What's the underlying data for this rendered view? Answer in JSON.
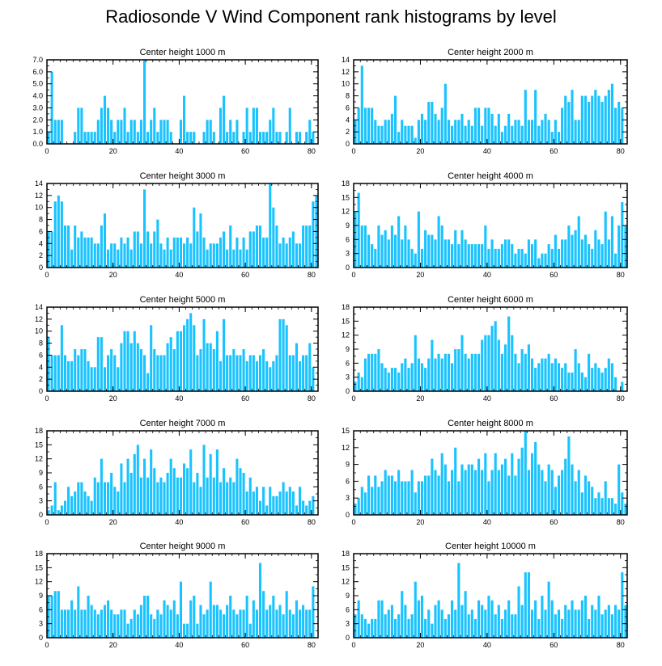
{
  "title": "Radiosonde V Wind Component rank histograms by level",
  "colors": {
    "bar": "#19c3ff",
    "frame": "#000000"
  },
  "chart_data": [
    {
      "type": "bar",
      "title": "Center height 1000 m",
      "xlim": [
        0,
        82
      ],
      "ylim": [
        0,
        7
      ],
      "xticks": [
        0,
        20,
        40,
        60,
        80
      ],
      "yticks": [
        "0.0",
        "1.0",
        "2.0",
        "3.0",
        "4.0",
        "5.0",
        "6.0",
        "7.0"
      ],
      "ytick_values": [
        0,
        1,
        2,
        3,
        4,
        5,
        6,
        7
      ],
      "values": [
        1,
        6,
        2,
        2,
        2,
        0,
        0,
        0,
        1,
        3,
        3,
        1,
        1,
        1,
        1,
        2,
        3,
        4,
        3,
        2,
        1,
        2,
        2,
        3,
        1,
        2,
        2,
        1,
        2,
        7,
        1,
        2,
        3,
        1,
        2,
        2,
        2,
        1,
        0,
        0,
        2,
        4,
        1,
        1,
        1,
        0,
        0,
        1,
        2,
        2,
        1,
        0,
        3,
        4,
        1,
        2,
        1,
        2,
        0,
        1,
        3,
        1,
        3,
        3,
        1,
        1,
        1,
        2,
        3,
        1,
        1,
        0,
        1,
        3,
        0,
        1,
        1,
        0,
        1,
        2,
        1
      ]
    },
    {
      "type": "bar",
      "title": "Center height 2000 m",
      "xlim": [
        0,
        82
      ],
      "ylim": [
        0,
        14
      ],
      "xticks": [
        0,
        20,
        40,
        60,
        80
      ],
      "yticks": [
        "0",
        "2",
        "4",
        "6",
        "8",
        "10",
        "12",
        "14"
      ],
      "ytick_values": [
        0,
        2,
        4,
        6,
        8,
        10,
        12,
        14
      ],
      "values": [
        4,
        6,
        13,
        6,
        6,
        6,
        4,
        3,
        3,
        4,
        4,
        5,
        8,
        2,
        4,
        3,
        3,
        3,
        1,
        4,
        5,
        4,
        7,
        7,
        5,
        4,
        6,
        10,
        4,
        3,
        4,
        4,
        5,
        3,
        4,
        3,
        6,
        6,
        3,
        6,
        6,
        5,
        3,
        5,
        2,
        3,
        5,
        3,
        4,
        4,
        3,
        9,
        4,
        4,
        9,
        3,
        4,
        5,
        4,
        2,
        4,
        2,
        6,
        8,
        7,
        9,
        4,
        4,
        8,
        8,
        7,
        8,
        9,
        8,
        7,
        8,
        9,
        10,
        6,
        7,
        6
      ]
    },
    {
      "type": "bar",
      "title": "Center height 3000 m",
      "xlim": [
        0,
        82
      ],
      "ylim": [
        0,
        14
      ],
      "xticks": [
        0,
        20,
        40,
        60,
        80
      ],
      "yticks": [
        "0",
        "2",
        "4",
        "6",
        "8",
        "10",
        "12",
        "14"
      ],
      "ytick_values": [
        0,
        2,
        4,
        6,
        8,
        10,
        12,
        14
      ],
      "values": [
        6,
        6,
        11,
        12,
        11,
        7,
        7,
        3,
        7,
        5,
        6,
        5,
        5,
        5,
        4,
        4,
        7,
        9,
        3,
        4,
        4,
        3,
        5,
        4,
        5,
        3,
        6,
        6,
        4,
        13,
        6,
        4,
        6,
        8,
        4,
        3,
        5,
        3,
        5,
        5,
        5,
        4,
        5,
        4,
        10,
        6,
        9,
        5,
        3,
        4,
        4,
        4,
        5,
        6,
        3,
        7,
        3,
        5,
        3,
        5,
        3,
        6,
        6,
        7,
        7,
        5,
        5,
        14,
        10,
        7,
        4,
        5,
        4,
        5,
        6,
        4,
        4,
        7,
        7,
        7,
        11,
        12
      ]
    },
    {
      "type": "bar",
      "title": "Center height 4000 m",
      "xlim": [
        0,
        82
      ],
      "ylim": [
        0,
        18
      ],
      "xticks": [
        0,
        20,
        40,
        60,
        80
      ],
      "yticks": [
        "0",
        "3",
        "6",
        "9",
        "12",
        "15",
        "18"
      ],
      "ytick_values": [
        0,
        3,
        6,
        9,
        12,
        15,
        18
      ],
      "values": [
        12,
        16,
        9,
        9,
        7,
        5,
        4,
        9,
        7,
        8,
        6,
        9,
        7,
        11,
        6,
        9,
        6,
        4,
        3,
        12,
        4,
        8,
        7,
        7,
        6,
        11,
        9,
        6,
        6,
        5,
        8,
        5,
        8,
        6,
        5,
        5,
        5,
        5,
        5,
        9,
        4,
        6,
        4,
        4,
        5,
        6,
        6,
        5,
        3,
        4,
        4,
        3,
        6,
        5,
        6,
        2,
        3,
        3,
        5,
        4,
        7,
        4,
        6,
        6,
        9,
        7,
        8,
        11,
        6,
        7,
        5,
        4,
        8,
        6,
        5,
        12,
        6,
        11,
        3,
        9,
        14,
        9
      ]
    },
    {
      "type": "bar",
      "title": "Center height 5000 m",
      "xlim": [
        0,
        82
      ],
      "ylim": [
        0,
        14
      ],
      "xticks": [
        0,
        20,
        40,
        60,
        80
      ],
      "yticks": [
        "0",
        "2",
        "4",
        "6",
        "8",
        "10",
        "12",
        "14"
      ],
      "ytick_values": [
        0,
        2,
        4,
        6,
        8,
        10,
        12,
        14
      ],
      "values": [
        9,
        6,
        6,
        6,
        11,
        6,
        5,
        5,
        7,
        6,
        7,
        7,
        5,
        4,
        4,
        9,
        9,
        4,
        6,
        7,
        6,
        4,
        8,
        10,
        10,
        8,
        10,
        8,
        7,
        6,
        3,
        11,
        7,
        6,
        6,
        6,
        8,
        9,
        7,
        10,
        10,
        11,
        12,
        13,
        11,
        6,
        7,
        12,
        8,
        8,
        7,
        10,
        5,
        12,
        6,
        6,
        7,
        6,
        6,
        7,
        5,
        6,
        6,
        5,
        6,
        7,
        5,
        4,
        5,
        6,
        12,
        12,
        11,
        6,
        6,
        8,
        5,
        6,
        6,
        8,
        4
      ]
    },
    {
      "type": "bar",
      "title": "Center height 6000 m",
      "xlim": [
        0,
        82
      ],
      "ylim": [
        0,
        18
      ],
      "xticks": [
        0,
        20,
        40,
        60,
        80
      ],
      "yticks": [
        "0",
        "3",
        "6",
        "9",
        "12",
        "15",
        "18"
      ],
      "ytick_values": [
        0,
        3,
        6,
        9,
        12,
        15,
        18
      ],
      "values": [
        2,
        4,
        3,
        7,
        8,
        8,
        8,
        9,
        6,
        5,
        4,
        5,
        5,
        4,
        6,
        7,
        5,
        6,
        12,
        7,
        6,
        5,
        7,
        11,
        7,
        8,
        7,
        8,
        8,
        6,
        9,
        9,
        12,
        8,
        7,
        8,
        8,
        8,
        11,
        12,
        12,
        14,
        15,
        11,
        8,
        10,
        16,
        12,
        8,
        6,
        9,
        8,
        10,
        7,
        5,
        6,
        7,
        7,
        8,
        6,
        7,
        6,
        5,
        6,
        4,
        4,
        9,
        6,
        4,
        3,
        8,
        5,
        6,
        5,
        4,
        5,
        7,
        6,
        3,
        0,
        2
      ]
    },
    {
      "type": "bar",
      "title": "Center height 7000 m",
      "xlim": [
        0,
        82
      ],
      "ylim": [
        0,
        18
      ],
      "xticks": [
        0,
        20,
        40,
        60,
        80
      ],
      "yticks": [
        "0",
        "3",
        "6",
        "9",
        "12",
        "15",
        "18"
      ],
      "ytick_values": [
        0,
        3,
        6,
        9,
        12,
        15,
        18
      ],
      "values": [
        1,
        2,
        7,
        1,
        2,
        3,
        6,
        4,
        5,
        7,
        7,
        5,
        4,
        3,
        8,
        7,
        12,
        7,
        7,
        9,
        6,
        5,
        11,
        7,
        12,
        9,
        13,
        15,
        8,
        12,
        8,
        14,
        10,
        7,
        8,
        7,
        9,
        12,
        10,
        8,
        8,
        11,
        10,
        14,
        7,
        9,
        6,
        15,
        8,
        13,
        8,
        14,
        7,
        10,
        7,
        8,
        7,
        12,
        10,
        9,
        5,
        8,
        5,
        6,
        3,
        6,
        2,
        6,
        4,
        4,
        5,
        7,
        5,
        6,
        5,
        2,
        6,
        3,
        2,
        3,
        4
      ]
    },
    {
      "type": "bar",
      "title": "Center height 8000 m",
      "xlim": [
        0,
        82
      ],
      "ylim": [
        0,
        15
      ],
      "xticks": [
        0,
        20,
        40,
        60,
        80
      ],
      "yticks": [
        "0",
        "3",
        "6",
        "9",
        "12",
        "15"
      ],
      "ytick_values": [
        0,
        3,
        6,
        9,
        12,
        15
      ],
      "values": [
        2,
        3,
        5,
        4,
        7,
        5,
        7,
        5,
        6,
        8,
        7,
        7,
        6,
        8,
        6,
        6,
        6,
        8,
        4,
        6,
        6,
        7,
        7,
        10,
        8,
        7,
        11,
        9,
        6,
        8,
        12,
        6,
        9,
        8,
        9,
        9,
        8,
        10,
        8,
        11,
        6,
        8,
        11,
        8,
        9,
        10,
        7,
        11,
        7,
        10,
        12,
        15,
        8,
        11,
        13,
        9,
        8,
        6,
        9,
        8,
        5,
        7,
        8,
        10,
        14,
        9,
        6,
        8,
        4,
        7,
        6,
        5,
        3,
        4,
        3,
        6,
        3,
        3,
        2,
        9,
        4,
        2
      ]
    },
    {
      "type": "bar",
      "title": "Center height 9000 m",
      "xlim": [
        0,
        82
      ],
      "ylim": [
        0,
        18
      ],
      "xticks": [
        0,
        20,
        40,
        60,
        80
      ],
      "yticks": [
        "0",
        "3",
        "6",
        "9",
        "12",
        "15",
        "18"
      ],
      "ytick_values": [
        0,
        3,
        6,
        9,
        12,
        15,
        18
      ],
      "values": [
        9,
        9,
        10,
        10,
        6,
        6,
        6,
        8,
        6,
        11,
        6,
        6,
        9,
        7,
        6,
        5,
        6,
        7,
        8,
        6,
        5,
        5,
        6,
        6,
        3,
        4,
        6,
        5,
        7,
        9,
        9,
        5,
        4,
        6,
        5,
        8,
        7,
        6,
        8,
        5,
        12,
        3,
        3,
        8,
        9,
        3,
        7,
        5,
        6,
        12,
        7,
        7,
        6,
        5,
        7,
        9,
        6,
        5,
        6,
        6,
        9,
        3,
        8,
        6,
        16,
        10,
        6,
        7,
        9,
        6,
        7,
        5,
        10,
        6,
        5,
        8,
        6,
        7,
        6,
        6,
        11
      ]
    },
    {
      "type": "bar",
      "title": "Center height 10000 m",
      "xlim": [
        0,
        82
      ],
      "ylim": [
        0,
        18
      ],
      "xticks": [
        0,
        20,
        40,
        60,
        80
      ],
      "yticks": [
        "0",
        "3",
        "6",
        "9",
        "12",
        "15",
        "18"
      ],
      "ytick_values": [
        0,
        3,
        6,
        9,
        12,
        15,
        18
      ],
      "values": [
        5,
        8,
        5,
        4,
        3,
        4,
        4,
        8,
        8,
        5,
        6,
        7,
        4,
        5,
        10,
        7,
        4,
        5,
        12,
        8,
        9,
        4,
        6,
        3,
        7,
        8,
        6,
        4,
        5,
        8,
        6,
        16,
        7,
        10,
        5,
        6,
        4,
        8,
        7,
        6,
        9,
        8,
        5,
        7,
        4,
        6,
        8,
        5,
        5,
        11,
        7,
        14,
        14,
        6,
        8,
        4,
        9,
        6,
        12,
        8,
        5,
        6,
        4,
        7,
        6,
        8,
        6,
        6,
        8,
        9,
        4,
        7,
        6,
        9,
        5,
        6,
        7,
        5,
        7,
        6,
        14,
        7
      ]
    }
  ]
}
